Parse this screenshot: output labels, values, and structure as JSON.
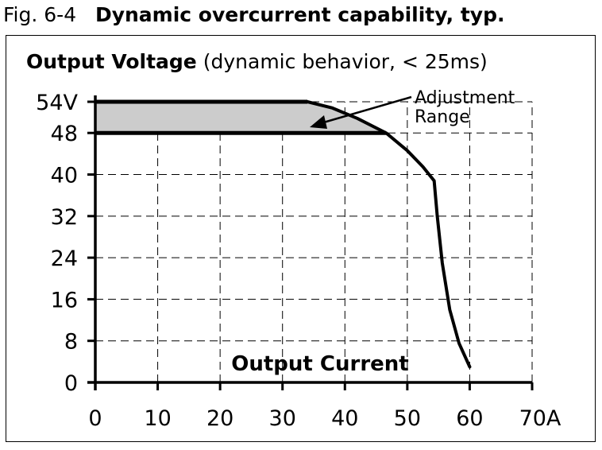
{
  "figure": {
    "number": "Fig. 6-4",
    "caption": "Dynamic overcurrent capability, typ."
  },
  "chart_data": {
    "type": "line",
    "title": "Output Voltage",
    "subtitle": "(dynamic behavior, < 25ms)",
    "xlabel": "Output Current",
    "ylabel": "",
    "xlim": [
      0,
      70
    ],
    "ylim": [
      0,
      54
    ],
    "x_ticks": [
      0,
      10,
      20,
      30,
      40,
      50,
      60,
      70
    ],
    "x_tick_labels": [
      "0",
      "10",
      "20",
      "30",
      "40",
      "50",
      "60",
      "70A"
    ],
    "y_ticks": [
      0,
      8,
      16,
      24,
      32,
      40,
      48,
      54
    ],
    "y_tick_labels": [
      "0",
      "8",
      "16",
      "24",
      "32",
      "40",
      "48",
      "54V"
    ],
    "grid": true,
    "grid_style": "dashed",
    "series": [
      {
        "points": [
          [
            34,
            54
          ],
          [
            38,
            52.8
          ],
          [
            42,
            50.8
          ],
          [
            46.6,
            48
          ],
          [
            50,
            44.6
          ],
          [
            52.5,
            41.5
          ],
          [
            54.3,
            38.8
          ],
          [
            54.8,
            32
          ],
          [
            55.6,
            23
          ],
          [
            56.8,
            14
          ],
          [
            58.3,
            7.5
          ],
          [
            60,
            3
          ]
        ]
      }
    ],
    "upper_limit_line": {
      "y": 54,
      "x_range": [
        0,
        34
      ]
    },
    "lower_limit_line": {
      "y": 48,
      "x_range": [
        0,
        46.6
      ]
    },
    "shaded_region_color": "#cccccc",
    "annotation": {
      "line1": "Adjustment",
      "line2": "Range"
    }
  }
}
